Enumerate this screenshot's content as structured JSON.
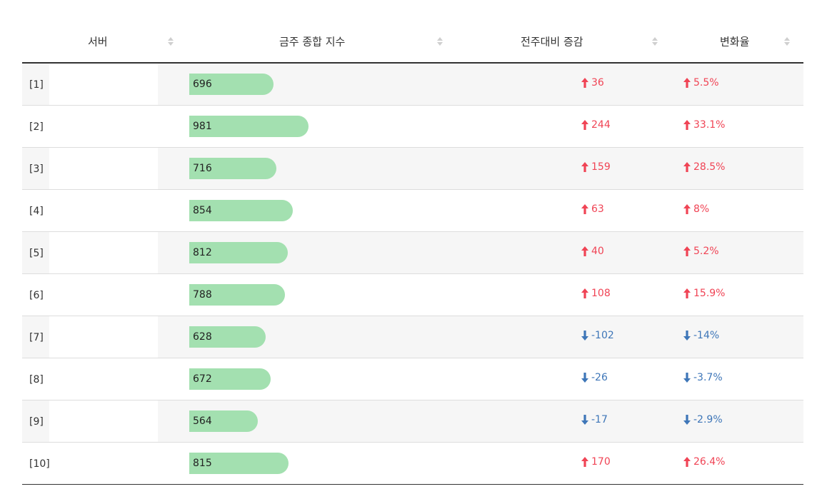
{
  "table": {
    "columns": [
      "서버",
      "금주 종합 지수",
      "전주대비 증감",
      "변화율"
    ],
    "max_index": 1000,
    "colors": {
      "bar": "#a3e0b0",
      "up": "#f04455",
      "down": "#3e76b8"
    },
    "rows": [
      {
        "server": "[1]",
        "index": 696,
        "index_label": "696",
        "direction": "up",
        "change": "36",
        "rate": "5.5%"
      },
      {
        "server": "[2]",
        "index": 981,
        "index_label": "981",
        "direction": "up",
        "change": "244",
        "rate": "33.1%"
      },
      {
        "server": "[3]",
        "index": 716,
        "index_label": "716",
        "direction": "up",
        "change": "159",
        "rate": "28.5%"
      },
      {
        "server": "[4]",
        "index": 854,
        "index_label": "854",
        "direction": "up",
        "change": "63",
        "rate": "8%"
      },
      {
        "server": "[5]",
        "index": 812,
        "index_label": "812",
        "direction": "up",
        "change": "40",
        "rate": "5.2%"
      },
      {
        "server": "[6]",
        "index": 788,
        "index_label": "788",
        "direction": "up",
        "change": "108",
        "rate": "15.9%"
      },
      {
        "server": "[7]",
        "index": 628,
        "index_label": "628",
        "direction": "down",
        "change": "-102",
        "rate": "-14%"
      },
      {
        "server": "[8]",
        "index": 672,
        "index_label": "672",
        "direction": "down",
        "change": "-26",
        "rate": "-3.7%"
      },
      {
        "server": "[9]",
        "index": 564,
        "index_label": "564",
        "direction": "down",
        "change": "-17",
        "rate": "-2.9%"
      },
      {
        "server": "[10]",
        "index": 815,
        "index_label": "815",
        "direction": "up",
        "change": "170",
        "rate": "26.4%"
      }
    ]
  }
}
